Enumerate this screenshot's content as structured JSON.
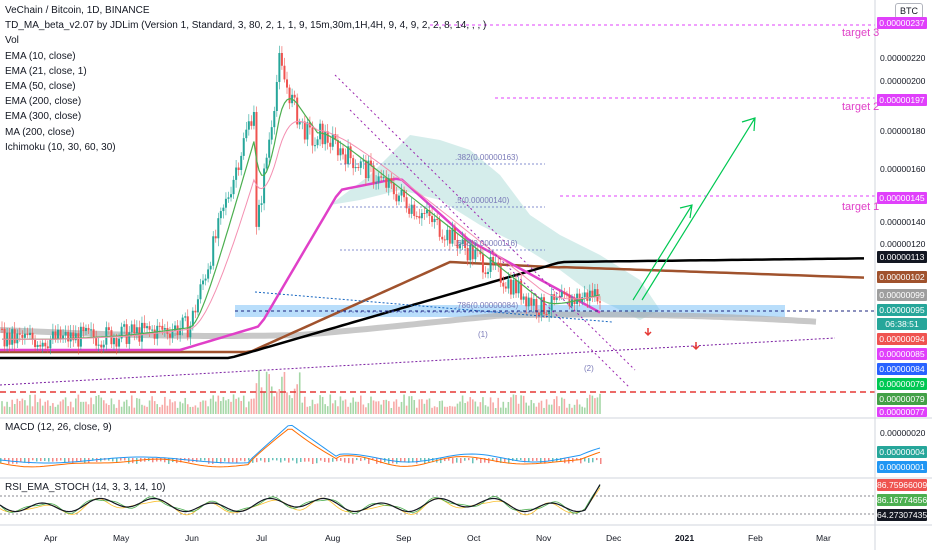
{
  "legend": {
    "title": "VeChain / Bitcoin, 1D, BINANCE",
    "lines": [
      "TD_MA_beta_v2.07 by JDLim (Version 1, Standard, 3, 80, 2, 1, 1, 9, 15m,30m,1H,4H, 9, 4, 9, 2, 2, 8, 14, , , )",
      "Vol",
      "EMA (10, close)",
      "EMA (21, close, 1)",
      "EMA (50, close)",
      "EMA (200, close)",
      "EMA (300, close)",
      "MA (200, close)",
      "Ichimoku (10, 30, 60, 30)"
    ]
  },
  "currency_button": "BTC",
  "macd_label": "MACD (12, 26, close, 9)",
  "rsi_label": "RSI_EMA_STOCH (14, 3, 3, 14, 10)",
  "targets": [
    {
      "label": "target 3",
      "price": 2.37e-06
    },
    {
      "label": "target 2",
      "price": 1.97e-06
    },
    {
      "label": "target 1",
      "price": 1.45e-06
    }
  ],
  "fib_levels": [
    {
      "label": ".382(0.00000163)",
      "price": 1.63e-06
    },
    {
      "label": ".5(0.00000140)",
      "price": 1.4e-06
    },
    {
      "label": ".618(0.00000116)",
      "price": 1.16e-06
    },
    {
      "label": ".786(0.00000084)",
      "price": 8.4e-07
    }
  ],
  "wave_labels": [
    "(1)",
    "(2)"
  ],
  "main_axis_ticks": [
    "0.00000220",
    "0.00000200",
    "0.00000180",
    "0.00000160",
    "0.00000140",
    "0.00000120"
  ],
  "macd_axis_ticks": [
    "0.00000020"
  ],
  "time_axis": [
    "Apr",
    "May",
    "Jun",
    "Jul",
    "Aug",
    "Sep",
    "Oct",
    "Nov",
    "Dec",
    "2021",
    "Feb",
    "Mar"
  ],
  "price_labels": [
    {
      "text": "0.00000237",
      "color": "#e040fb",
      "pane": "main"
    },
    {
      "text": "0.00000197",
      "color": "#e040fb",
      "pane": "main"
    },
    {
      "text": "0.00000145",
      "color": "#e040fb",
      "pane": "main"
    },
    {
      "text": "0.00000113",
      "color": "#131722",
      "pane": "main"
    },
    {
      "text": "0.00000102",
      "color": "#a0522d",
      "pane": "main"
    },
    {
      "text": "0.00000099",
      "color": "#9e9e9e",
      "pane": "main"
    },
    {
      "text": "0.00000095",
      "color": "#26a69a",
      "pane": "main"
    },
    {
      "text": "06:38:51",
      "color": "#26a69a",
      "pane": "main"
    },
    {
      "text": "0.00000094",
      "color": "#ef5350",
      "pane": "main"
    },
    {
      "text": "0.00000085",
      "color": "#e040fb",
      "pane": "main"
    },
    {
      "text": "0.00000084",
      "color": "#2962ff",
      "pane": "main"
    },
    {
      "text": "0.00000079",
      "color": "#00c853",
      "pane": "main"
    },
    {
      "text": "0.00000079",
      "color": "#43a047",
      "pane": "main"
    },
    {
      "text": "0.00000077",
      "color": "#e040fb",
      "pane": "main"
    },
    {
      "text": "0.00000004",
      "color": "#26a69a",
      "pane": "macd"
    },
    {
      "text": "0.00000001",
      "color": "#2196f3",
      "pane": "macd"
    },
    {
      "text": "86.75966009",
      "color": "#ef5350",
      "pane": "rsi"
    },
    {
      "text": "86.16774656",
      "color": "#4caf50",
      "pane": "rsi"
    },
    {
      "text": "64.27307435",
      "color": "#131722",
      "pane": "rsi"
    }
  ],
  "colors": {
    "ema10": "#4caf50",
    "ema21": "#f48fb1",
    "ema50": "#e040c8",
    "ema200": "#a0522d",
    "ema300": "#b0b0b0",
    "ma200": "#000000",
    "target": "#e040fb",
    "arrow": "#00c853",
    "support": "#7b1fa2",
    "channel": "#9c27b0",
    "cloud": "#b2dfdb"
  },
  "chart_data": {
    "type": "line",
    "symbol": "VeChain / Bitcoin",
    "interval": "1D",
    "exchange": "BINANCE",
    "x": [
      "Apr",
      "May",
      "Jun",
      "Jul",
      "Aug",
      "Sep",
      "Oct",
      "Nov",
      "Dec"
    ],
    "series": [
      {
        "name": "Close",
        "values": [
          6.8e-07,
          7e-07,
          7.5e-07,
          2.05e-06,
          1.75e-06,
          1.45e-06,
          1.15e-06,
          8.5e-07,
          9.5e-07
        ]
      },
      {
        "name": "EMA (50, close)",
        "values": [
          7e-07,
          6.9e-07,
          7.2e-07,
          9e-07,
          1.4e-06,
          1.5e-06,
          1.28e-06,
          1e-06,
          9.4e-07
        ]
      },
      {
        "name": "MA (200, close)",
        "values": [
          7.3e-07,
          7.3e-07,
          7.4e-07,
          7.8e-07,
          9e-07,
          1.03e-06,
          1.1e-06,
          1.13e-06,
          1.13e-06
        ]
      }
    ],
    "ylim": [
      7e-07,
      2.4e-06
    ],
    "grid": false,
    "legend": "top-left"
  }
}
